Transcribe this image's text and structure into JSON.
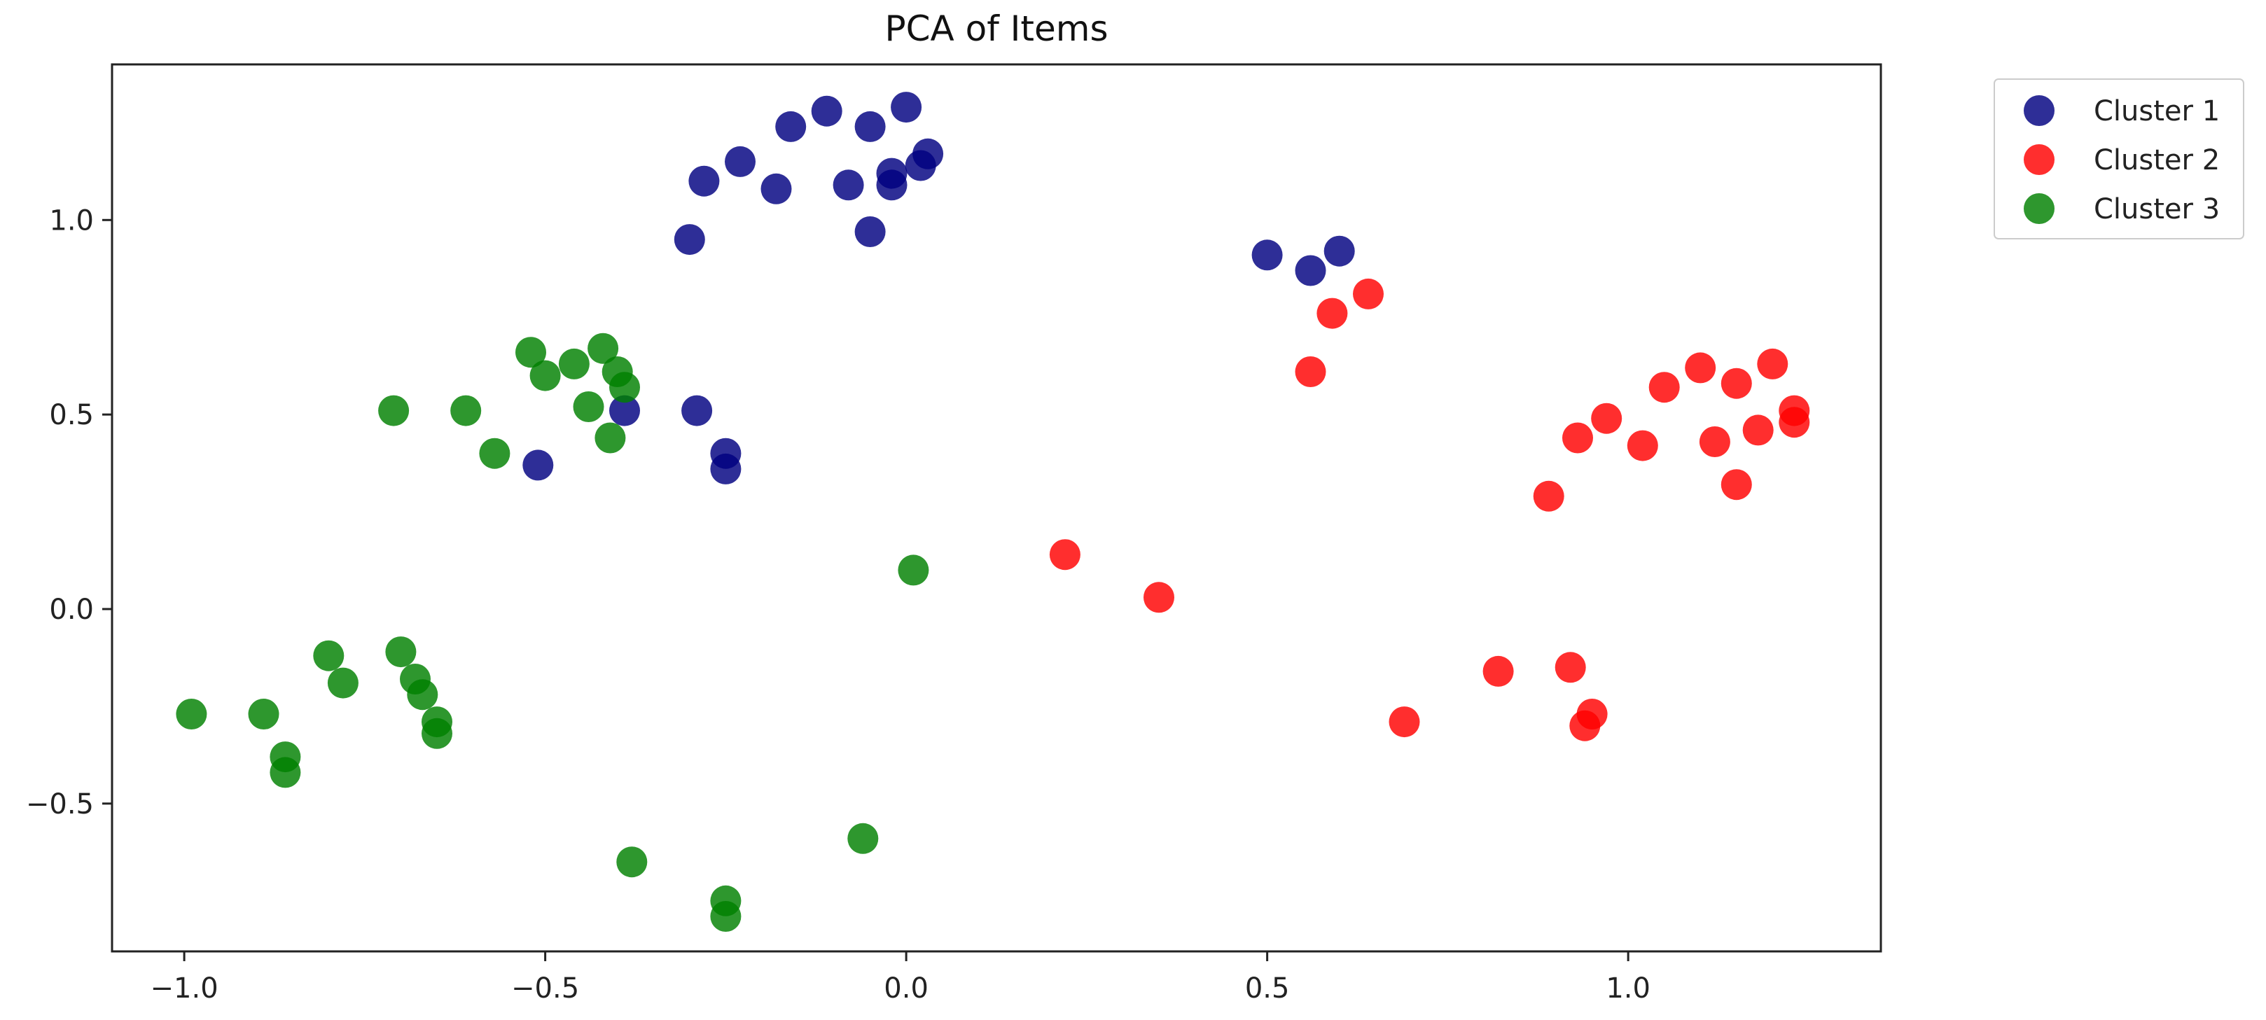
{
  "chart_data": {
    "type": "scatter",
    "title": "PCA of Items",
    "xlabel": "",
    "ylabel": "",
    "xlim": [
      -1.1,
      1.35
    ],
    "ylim": [
      -0.88,
      1.4
    ],
    "xticks": [
      -1.0,
      -0.5,
      0.0,
      0.5,
      1.0
    ],
    "xtick_labels": [
      "−1.0",
      "−0.5",
      "0.0",
      "0.5",
      "1.0"
    ],
    "yticks": [
      -0.5,
      0.0,
      0.5,
      1.0
    ],
    "ytick_labels": [
      "−0.5",
      "0.0",
      "0.5",
      "1.0"
    ],
    "grid": false,
    "legend_position": "outside-top-right",
    "series": [
      {
        "name": "Cluster 1",
        "color": "#000080",
        "points": [
          [
            -0.3,
            0.95
          ],
          [
            -0.28,
            1.1
          ],
          [
            -0.23,
            1.15
          ],
          [
            -0.18,
            1.08
          ],
          [
            -0.16,
            1.24
          ],
          [
            -0.11,
            1.28
          ],
          [
            -0.08,
            1.09
          ],
          [
            -0.05,
            1.24
          ],
          [
            -0.05,
            0.97
          ],
          [
            -0.02,
            1.09
          ],
          [
            -0.02,
            1.12
          ],
          [
            0.0,
            1.29
          ],
          [
            0.02,
            1.14
          ],
          [
            0.03,
            1.17
          ],
          [
            0.5,
            0.91
          ],
          [
            0.56,
            0.87
          ],
          [
            0.6,
            0.92
          ],
          [
            -0.51,
            0.37
          ],
          [
            -0.39,
            0.51
          ],
          [
            -0.29,
            0.51
          ],
          [
            -0.25,
            0.36
          ],
          [
            -0.25,
            0.4
          ]
        ]
      },
      {
        "name": "Cluster 2",
        "color": "#ff0000",
        "points": [
          [
            0.59,
            0.76
          ],
          [
            0.64,
            0.81
          ],
          [
            0.56,
            0.61
          ],
          [
            0.89,
            0.29
          ],
          [
            0.93,
            0.44
          ],
          [
            0.97,
            0.49
          ],
          [
            1.02,
            0.42
          ],
          [
            1.05,
            0.57
          ],
          [
            1.1,
            0.62
          ],
          [
            1.12,
            0.43
          ],
          [
            1.15,
            0.58
          ],
          [
            1.15,
            0.32
          ],
          [
            1.18,
            0.46
          ],
          [
            1.2,
            0.63
          ],
          [
            1.23,
            0.51
          ],
          [
            1.23,
            0.48
          ],
          [
            0.22,
            0.14
          ],
          [
            0.35,
            0.03
          ],
          [
            0.69,
            -0.29
          ],
          [
            0.82,
            -0.16
          ],
          [
            0.92,
            -0.15
          ],
          [
            0.95,
            -0.27
          ],
          [
            0.94,
            -0.3
          ]
        ]
      },
      {
        "name": "Cluster 3",
        "color": "#008000",
        "points": [
          [
            -0.71,
            0.51
          ],
          [
            -0.61,
            0.51
          ],
          [
            -0.57,
            0.4
          ],
          [
            -0.52,
            0.66
          ],
          [
            -0.5,
            0.6
          ],
          [
            -0.46,
            0.63
          ],
          [
            -0.44,
            0.52
          ],
          [
            -0.42,
            0.67
          ],
          [
            -0.4,
            0.61
          ],
          [
            -0.39,
            0.57
          ],
          [
            -0.41,
            0.44
          ],
          [
            0.01,
            0.1
          ],
          [
            -0.99,
            -0.27
          ],
          [
            -0.89,
            -0.27
          ],
          [
            -0.86,
            -0.38
          ],
          [
            -0.86,
            -0.42
          ],
          [
            -0.8,
            -0.12
          ],
          [
            -0.78,
            -0.19
          ],
          [
            -0.7,
            -0.11
          ],
          [
            -0.68,
            -0.18
          ],
          [
            -0.67,
            -0.22
          ],
          [
            -0.65,
            -0.29
          ],
          [
            -0.65,
            -0.32
          ],
          [
            -0.38,
            -0.65
          ],
          [
            -0.25,
            -0.75
          ],
          [
            -0.25,
            -0.79
          ],
          [
            -0.06,
            -0.59
          ]
        ]
      }
    ]
  }
}
